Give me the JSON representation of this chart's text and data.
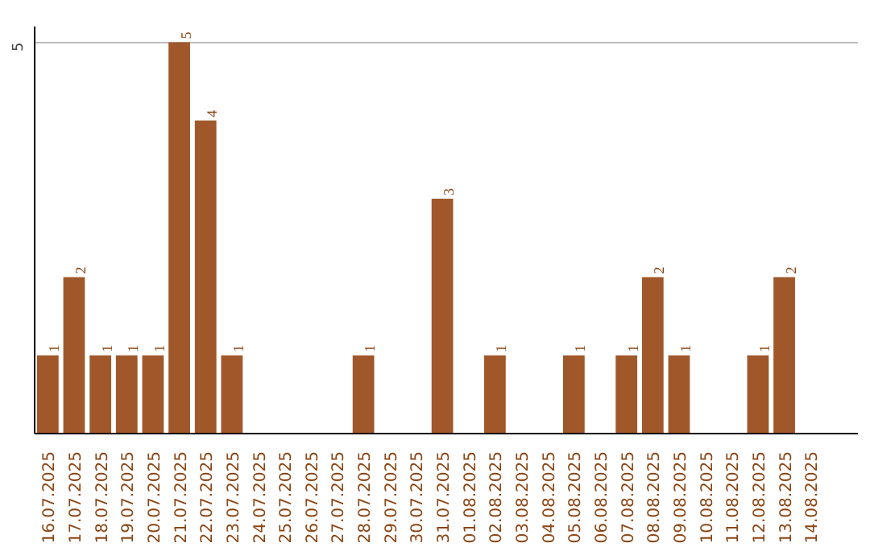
{
  "chart_data": {
    "type": "bar",
    "categories": [
      "16.07.2025",
      "17.07.2025",
      "18.07.2025",
      "19.07.2025",
      "20.07.2025",
      "21.07.2025",
      "22.07.2025",
      "23.07.2025",
      "24.07.2025",
      "25.07.2025",
      "26.07.2025",
      "27.07.2025",
      "28.07.2025",
      "29.07.2025",
      "30.07.2025",
      "31.07.2025",
      "01.08.2025",
      "02.08.2025",
      "03.08.2025",
      "04.08.2025",
      "05.08.2025",
      "06.08.2025",
      "07.08.2025",
      "08.08.2025",
      "09.08.2025",
      "10.08.2025",
      "11.08.2025",
      "12.08.2025",
      "13.08.2025",
      "14.08.2025"
    ],
    "values": [
      1,
      2,
      1,
      1,
      1,
      5,
      4,
      1,
      0,
      0,
      0,
      0,
      1,
      0,
      0,
      3,
      0,
      1,
      0,
      0,
      1,
      0,
      1,
      2,
      1,
      0,
      0,
      1,
      2,
      0
    ],
    "value_labels": [
      "1",
      "2",
      "1",
      "1",
      "1",
      "5",
      "4",
      "1",
      null,
      null,
      null,
      null,
      "1",
      null,
      null,
      "3",
      null,
      "1",
      null,
      null,
      "1",
      null,
      "1",
      "2",
      "1",
      null,
      null,
      "1",
      "2",
      null
    ],
    "color": "#a0582a",
    "ylim": [
      0,
      5.2
    ],
    "yticks": [
      5
    ],
    "grid": "y"
  }
}
